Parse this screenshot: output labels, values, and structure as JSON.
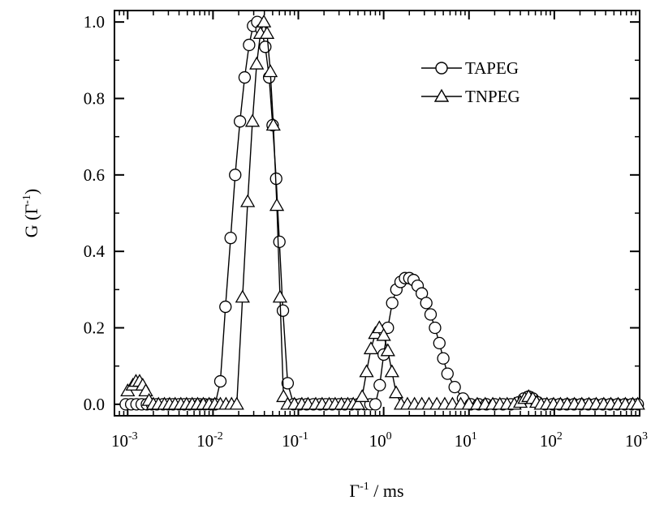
{
  "chart_data": {
    "type": "scatter",
    "xscale": "log",
    "xlim": [
      0.0007,
      1000
    ],
    "ylim": [
      -0.03,
      1.03
    ],
    "grid": false,
    "legend_position": "top-right",
    "xlabel": {
      "base": "Γ",
      "sup": "-1",
      "rest": " / ms"
    },
    "ylabel": {
      "base": "G (Γ",
      "sup": "-1",
      "rest": ")"
    },
    "x_ticks": [
      {
        "value": 0.001,
        "base": "10",
        "exp": "-3"
      },
      {
        "value": 0.01,
        "base": "10",
        "exp": "-2"
      },
      {
        "value": 0.1,
        "base": "10",
        "exp": "-1"
      },
      {
        "value": 1,
        "base": "10",
        "exp": "0"
      },
      {
        "value": 10,
        "base": "10",
        "exp": "1"
      },
      {
        "value": 100,
        "base": "10",
        "exp": "2"
      },
      {
        "value": 1000,
        "base": "10",
        "exp": "3"
      }
    ],
    "y_ticks": [
      {
        "value": 0.0,
        "label": "0.0"
      },
      {
        "value": 0.2,
        "label": "0.2"
      },
      {
        "value": 0.4,
        "label": "0.4"
      },
      {
        "value": 0.6,
        "label": "0.6"
      },
      {
        "value": 0.8,
        "label": "0.8"
      },
      {
        "value": 1.0,
        "label": "1.0"
      }
    ],
    "series": [
      {
        "name": "TAPEG",
        "marker": "circle",
        "x": [
          0.00095,
          0.0011,
          0.00127,
          0.00146,
          0.00168,
          0.00193,
          0.0022,
          0.0026,
          0.003,
          0.0034,
          0.004,
          0.0046,
          0.0053,
          0.0061,
          0.007,
          0.008,
          0.0092,
          0.0106,
          0.0122,
          0.014,
          0.0161,
          0.0182,
          0.0207,
          0.0235,
          0.0265,
          0.0295,
          0.033,
          0.037,
          0.041,
          0.0455,
          0.05,
          0.055,
          0.06,
          0.066,
          0.075,
          0.088,
          0.105,
          0.125,
          0.15,
          0.18,
          0.21,
          0.25,
          0.3,
          0.35,
          0.42,
          0.5,
          0.6,
          0.7,
          0.8,
          0.9,
          1.0,
          1.12,
          1.26,
          1.41,
          1.58,
          1.78,
          2.0,
          2.24,
          2.5,
          2.8,
          3.16,
          3.55,
          4.0,
          4.5,
          5.0,
          5.6,
          6.8,
          8.5,
          10.5,
          13,
          16,
          20,
          25,
          31,
          38,
          44,
          50,
          56,
          64,
          78,
          95,
          115,
          140,
          170,
          205,
          250,
          300,
          370,
          450,
          550,
          670,
          810,
          950
        ],
        "y": [
          0.0,
          0.0,
          0.0,
          0.0,
          0.0,
          0.0,
          0.0,
          0.0,
          0.0,
          0.0,
          0.0,
          0.0,
          0.0,
          0.0,
          0.0,
          0.0,
          0.0,
          0.0,
          0.06,
          0.255,
          0.435,
          0.6,
          0.74,
          0.855,
          0.94,
          0.99,
          1.0,
          0.98,
          0.935,
          0.855,
          0.73,
          0.59,
          0.425,
          0.245,
          0.055,
          0.0,
          0.0,
          0.0,
          0.0,
          0.0,
          0.0,
          0.0,
          0.0,
          0.0,
          0.0,
          0.0,
          0.0,
          0.0,
          0.0,
          0.05,
          0.13,
          0.2,
          0.265,
          0.3,
          0.32,
          0.33,
          0.33,
          0.325,
          0.31,
          0.29,
          0.265,
          0.235,
          0.2,
          0.16,
          0.12,
          0.08,
          0.045,
          0.015,
          0.0,
          0.0,
          0.0,
          0.0,
          0.0,
          0.0,
          0.005,
          0.015,
          0.02,
          0.015,
          0.005,
          0.0,
          0.0,
          0.0,
          0.0,
          0.0,
          0.0,
          0.0,
          0.0,
          0.0,
          0.0,
          0.0,
          0.0,
          0.0,
          0.0
        ]
      },
      {
        "name": "TNPEG",
        "marker": "triangle",
        "x": [
          0.001,
          0.00115,
          0.00125,
          0.00138,
          0.0015,
          0.00163,
          0.00178,
          0.002,
          0.0023,
          0.0027,
          0.0031,
          0.0036,
          0.0042,
          0.0049,
          0.0057,
          0.0066,
          0.0077,
          0.009,
          0.0105,
          0.0122,
          0.0142,
          0.0165,
          0.019,
          0.0222,
          0.0255,
          0.029,
          0.0325,
          0.036,
          0.0395,
          0.043,
          0.047,
          0.051,
          0.056,
          0.061,
          0.067,
          0.075,
          0.09,
          0.11,
          0.13,
          0.16,
          0.19,
          0.23,
          0.27,
          0.32,
          0.38,
          0.44,
          0.5,
          0.56,
          0.63,
          0.71,
          0.8,
          0.89,
          1.0,
          1.12,
          1.25,
          1.4,
          1.6,
          1.9,
          2.3,
          2.8,
          3.4,
          4.2,
          5.2,
          6.4,
          8.0,
          10,
          12.5,
          15.5,
          19,
          23,
          28,
          34,
          40,
          45,
          50,
          56,
          62,
          70,
          82,
          98,
          118,
          142,
          172,
          210,
          255,
          310,
          380,
          460,
          560,
          680,
          830,
          950
        ],
        "y": [
          0.035,
          0.05,
          0.06,
          0.06,
          0.05,
          0.035,
          0.01,
          0.0,
          0.0,
          0.0,
          0.0,
          0.0,
          0.0,
          0.0,
          0.0,
          0.0,
          0.0,
          0.0,
          0.0,
          0.0,
          0.0,
          0.0,
          0.0,
          0.28,
          0.53,
          0.74,
          0.89,
          0.97,
          1.0,
          0.97,
          0.87,
          0.73,
          0.52,
          0.28,
          0.02,
          0.0,
          0.0,
          0.0,
          0.0,
          0.0,
          0.0,
          0.0,
          0.0,
          0.0,
          0.0,
          0.0,
          0.0,
          0.02,
          0.085,
          0.145,
          0.185,
          0.2,
          0.18,
          0.14,
          0.085,
          0.03,
          0.0,
          0.0,
          0.0,
          0.0,
          0.0,
          0.0,
          0.0,
          0.0,
          0.0,
          0.0,
          0.0,
          0.0,
          0.0,
          0.0,
          0.0,
          0.0,
          0.005,
          0.015,
          0.02,
          0.015,
          0.005,
          0.0,
          0.0,
          0.0,
          0.0,
          0.0,
          0.0,
          0.0,
          0.0,
          0.0,
          0.0,
          0.0,
          0.0,
          0.0,
          0.0,
          0.0
        ]
      }
    ]
  }
}
